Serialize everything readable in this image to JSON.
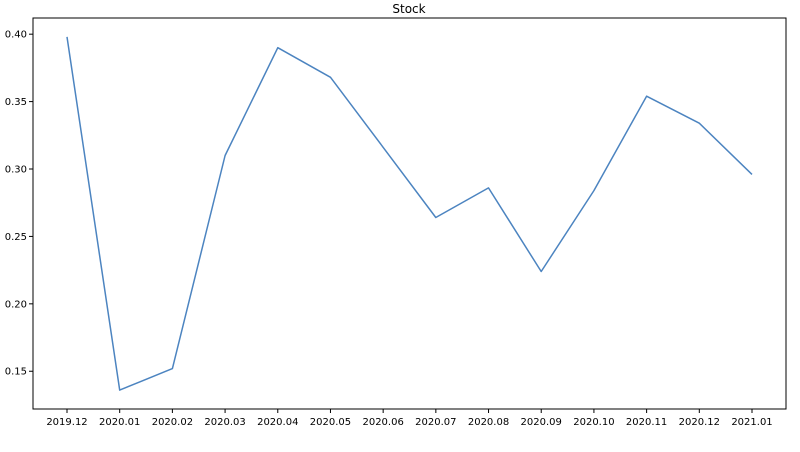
{
  "chart_data": {
    "type": "line",
    "title": "Stock",
    "xlabel": "",
    "ylabel": "",
    "categories": [
      "2019.12",
      "2020.01",
      "2020.02",
      "2020.03",
      "2020.04",
      "2020.05",
      "2020.06",
      "2020.07",
      "2020.08",
      "2020.09",
      "2020.10",
      "2020.11",
      "2020.12",
      "2021.01"
    ],
    "series": [
      {
        "values": [
          0.398,
          0.136,
          0.152,
          0.31,
          0.39,
          0.368,
          0.316,
          0.264,
          0.286,
          0.224,
          0.284,
          0.354,
          0.334,
          0.296
        ]
      }
    ],
    "yticks": [
      "0.15",
      "0.20",
      "0.25",
      "0.30",
      "0.35",
      "0.40"
    ],
    "ylim": [
      0.122,
      0.412
    ],
    "grid": false,
    "legend": "none",
    "line_color": "#4c84c0"
  }
}
